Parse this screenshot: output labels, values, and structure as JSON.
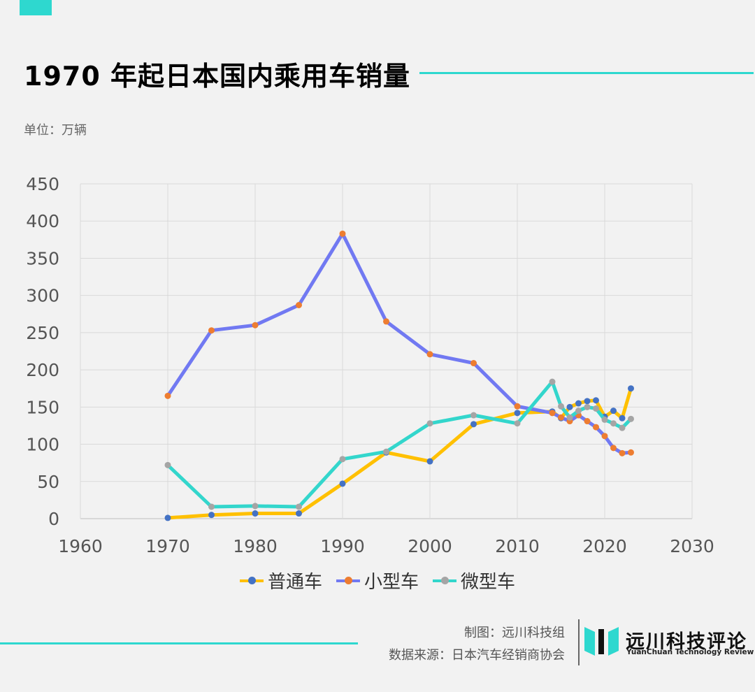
{
  "title": "1970 年起日本国内乘用车销量",
  "unit_label": "单位：万辆",
  "credits": {
    "made_by": "制图：远川科技组",
    "source": "数据来源：日本汽车经销商协会"
  },
  "logo": {
    "name": "远川科技评论",
    "subtitle": "YuanChuan Technology Review"
  },
  "colors": {
    "accent": "#2ed8cf",
    "grid": "#d9d9d9",
    "axis_text": "#555555"
  },
  "chart_data": {
    "type": "line",
    "title": "",
    "xlabel": "",
    "ylabel": "",
    "xlim": [
      1960,
      2030
    ],
    "ylim": [
      0,
      450
    ],
    "xticks": [
      1960,
      1970,
      1980,
      1990,
      2000,
      2010,
      2020,
      2030
    ],
    "yticks": [
      0,
      50,
      100,
      150,
      200,
      250,
      300,
      350,
      400,
      450
    ],
    "grid": true,
    "legend_position": "bottom",
    "series": [
      {
        "name": "普通车",
        "line_color": "#ffc000",
        "marker_color": "#4472c4",
        "points": [
          [
            1970,
            1
          ],
          [
            1975,
            5
          ],
          [
            1980,
            7
          ],
          [
            1985,
            7
          ],
          [
            1990,
            47
          ],
          [
            1995,
            89
          ],
          [
            2000,
            77
          ],
          [
            2005,
            127
          ],
          [
            2010,
            142
          ],
          [
            2014,
            144
          ],
          [
            2015,
            135
          ],
          [
            2016,
            150
          ],
          [
            2017,
            155
          ],
          [
            2018,
            158
          ],
          [
            2019,
            159
          ],
          [
            2020,
            137
          ],
          [
            2021,
            145
          ],
          [
            2022,
            135
          ],
          [
            2023,
            175
          ]
        ]
      },
      {
        "name": "小型车",
        "line_color": "#7179f2",
        "marker_color": "#ed7d31",
        "points": [
          [
            1970,
            165
          ],
          [
            1975,
            253
          ],
          [
            1980,
            260
          ],
          [
            1985,
            287
          ],
          [
            1990,
            383
          ],
          [
            1995,
            265
          ],
          [
            2000,
            221
          ],
          [
            2005,
            209
          ],
          [
            2010,
            151
          ],
          [
            2014,
            142
          ],
          [
            2015,
            136
          ],
          [
            2016,
            131
          ],
          [
            2017,
            139
          ],
          [
            2018,
            131
          ],
          [
            2019,
            123
          ],
          [
            2020,
            111
          ],
          [
            2021,
            95
          ],
          [
            2022,
            88
          ],
          [
            2023,
            89
          ]
        ]
      },
      {
        "name": "微型车",
        "line_color": "#33d6cc",
        "marker_color": "#a5a5a5",
        "points": [
          [
            1970,
            72
          ],
          [
            1975,
            16
          ],
          [
            1980,
            17
          ],
          [
            1985,
            16
          ],
          [
            1990,
            80
          ],
          [
            1995,
            90
          ],
          [
            2000,
            128
          ],
          [
            2005,
            139
          ],
          [
            2010,
            128
          ],
          [
            2014,
            184
          ],
          [
            2015,
            151
          ],
          [
            2016,
            136
          ],
          [
            2017,
            145
          ],
          [
            2018,
            150
          ],
          [
            2019,
            148
          ],
          [
            2020,
            133
          ],
          [
            2021,
            128
          ],
          [
            2022,
            122
          ],
          [
            2023,
            134
          ]
        ]
      }
    ]
  }
}
